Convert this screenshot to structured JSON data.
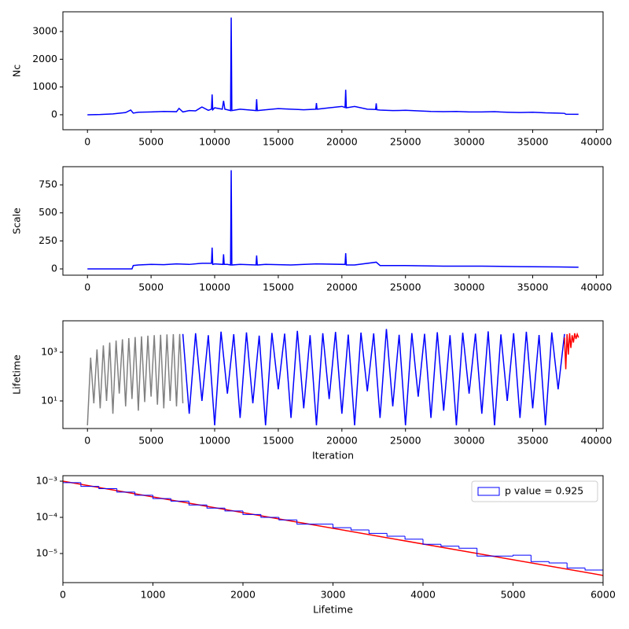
{
  "chart_data": [
    {
      "type": "line",
      "ylabel": "Nc",
      "series": [
        {
          "color": "#0000ff",
          "x": [
            0,
            1000,
            2000,
            3000,
            3400,
            3600,
            4000,
            5000,
            6000,
            7000,
            7200,
            7500,
            8000,
            8500,
            9000,
            9500,
            9750,
            9800,
            9850,
            10000,
            10600,
            10700,
            10800,
            11000,
            11250,
            11300,
            11350,
            12000,
            13000,
            13250,
            13300,
            13350,
            14000,
            15000,
            16000,
            17000,
            17950,
            18000,
            18050,
            19000,
            20000,
            20250,
            20300,
            20350,
            21000,
            22000,
            22650,
            22700,
            22750,
            23000,
            24000,
            25000,
            26000,
            27000,
            28000,
            29000,
            30000,
            31000,
            32000,
            33000,
            34000,
            35000,
            36000,
            37000,
            37500,
            37600,
            38600
          ],
          "values": [
            0,
            10,
            30,
            80,
            170,
            60,
            90,
            100,
            120,
            110,
            230,
            100,
            150,
            140,
            280,
            160,
            200,
            730,
            180,
            250,
            200,
            500,
            200,
            180,
            150,
            3500,
            150,
            200,
            160,
            150,
            560,
            150,
            180,
            220,
            200,
            180,
            200,
            420,
            200,
            250,
            300,
            260,
            900,
            250,
            300,
            200,
            190,
            410,
            180,
            170,
            150,
            160,
            140,
            120,
            110,
            120,
            100,
            100,
            110,
            90,
            80,
            90,
            70,
            60,
            50,
            20,
            15
          ]
        }
      ],
      "xlim": [
        -1930,
        40530
      ],
      "xticks": [
        0,
        5000,
        10000,
        15000,
        20000,
        25000,
        30000,
        35000,
        40000
      ],
      "ylim": [
        -540,
        3710
      ],
      "yticks": [
        0,
        1000,
        2000,
        3000
      ]
    },
    {
      "type": "line",
      "ylabel": "Scale",
      "series": [
        {
          "color": "#0000ff",
          "x": [
            0,
            3500,
            3600,
            4000,
            5000,
            6000,
            7000,
            8000,
            9000,
            9750,
            9800,
            9850,
            10000,
            10650,
            10700,
            10750,
            11000,
            11250,
            11300,
            11350,
            12000,
            13250,
            13300,
            13350,
            14000,
            16000,
            18000,
            20250,
            20300,
            20350,
            21000,
            22700,
            23000,
            25000,
            28000,
            31000,
            34000,
            37000,
            38600
          ],
          "values": [
            0,
            0,
            30,
            35,
            40,
            38,
            45,
            40,
            50,
            50,
            190,
            40,
            45,
            40,
            130,
            40,
            40,
            35,
            880,
            35,
            40,
            35,
            120,
            35,
            40,
            35,
            45,
            40,
            140,
            35,
            35,
            60,
            30,
            30,
            25,
            25,
            20,
            18,
            15
          ]
        }
      ],
      "xlim": [
        -1930,
        40530
      ],
      "xticks": [
        0,
        5000,
        10000,
        15000,
        20000,
        25000,
        30000,
        35000,
        40000
      ],
      "ylim": [
        -56,
        912
      ],
      "yticks": [
        0,
        250,
        500,
        750
      ]
    },
    {
      "type": "line",
      "ylabel": "Lifetime",
      "xlabel": "Iteration",
      "ylog": true,
      "series": [
        {
          "color": "#808080",
          "x": [
            0,
            250,
            500,
            750,
            1000,
            1250,
            1500,
            1750,
            2000,
            2250,
            2500,
            2750,
            3000,
            3250,
            3500,
            3750,
            4000,
            4250,
            4500,
            4750,
            5000,
            5250,
            5500,
            5750,
            6000,
            6250,
            6500,
            6750,
            7000,
            7250,
            7500
          ],
          "values": [
            1,
            600,
            8,
            1300,
            5,
            1900,
            10,
            2500,
            3,
            3000,
            20,
            3400,
            6,
            3800,
            12,
            4200,
            4,
            4500,
            9,
            4800,
            15,
            5000,
            7,
            5200,
            5,
            5400,
            10,
            5500,
            6,
            5600,
            8
          ]
        },
        {
          "color": "#0000ff",
          "x": [
            7500,
            8000,
            8500,
            9000,
            9500,
            10000,
            10500,
            11000,
            11500,
            12000,
            12500,
            13000,
            13500,
            14000,
            14500,
            15000,
            15500,
            16000,
            16500,
            17000,
            17500,
            18000,
            18500,
            19000,
            19500,
            20000,
            20500,
            21000,
            21500,
            22000,
            22500,
            23000,
            23500,
            24000,
            24500,
            25000,
            25500,
            26000,
            26500,
            27000,
            27500,
            28000,
            28500,
            29000,
            29500,
            30000,
            30500,
            31000,
            31500,
            32000,
            32500,
            33000,
            33500,
            34000,
            34500,
            35000,
            35500,
            36000,
            36500,
            37000,
            37500
          ],
          "values": [
            5600,
            3,
            6000,
            10,
            5000,
            1,
            7000,
            20,
            5500,
            2,
            6500,
            8,
            4800,
            1,
            6200,
            30,
            5800,
            2,
            7500,
            5,
            5000,
            1,
            6000,
            12,
            6800,
            3,
            5300,
            1,
            6400,
            25,
            5900,
            2,
            9000,
            6,
            5200,
            1,
            6100,
            15,
            5700,
            2,
            6600,
            4,
            5000,
            1,
            6300,
            20,
            5800,
            3,
            7200,
            1,
            5400,
            10,
            6000,
            2,
            6900,
            5,
            5100,
            1,
            6500,
            30,
            5600
          ]
        },
        {
          "color": "#ff0000",
          "x": [
            37500,
            37600,
            37700,
            37800,
            37900,
            38000,
            38100,
            38200,
            38300,
            38400,
            38500,
            38600
          ],
          "values": [
            4000,
            200,
            5500,
            800,
            6000,
            1500,
            5000,
            2500,
            6000,
            3500,
            5500,
            4000
          ]
        }
      ],
      "xlim": [
        -1930,
        40530
      ],
      "xticks": [
        0,
        5000,
        10000,
        15000,
        20000,
        25000,
        30000,
        35000,
        40000
      ],
      "ylim": [
        0.74,
        19500
      ],
      "yticks": [
        {
          "value": 10,
          "label": "10¹"
        },
        {
          "value": 1000,
          "label": "10³"
        }
      ]
    },
    {
      "type": "histogram",
      "xlabel": "Lifetime",
      "ylog": true,
      "color": "#0000ff",
      "label": "p value = 0.925",
      "legend": "upper right",
      "bins": [
        0,
        200,
        400,
        600,
        800,
        1000,
        1200,
        1400,
        1600,
        1800,
        2000,
        2200,
        2400,
        2600,
        2800,
        3000,
        3200,
        3400,
        3600,
        3800,
        4000,
        4200,
        4400,
        4600,
        4800,
        5000,
        5200,
        5400,
        5600,
        5800,
        6000
      ],
      "values": [
        0.00091,
        0.00072,
        0.00062,
        0.0005,
        0.00041,
        0.00033,
        0.00028,
        0.00022,
        0.00018,
        0.00015,
        0.00012,
        0.0001,
        8.5e-05,
        6.5e-05,
        6.5e-05,
        5.2e-05,
        4.5e-05,
        3.6e-05,
        3e-05,
        2.5e-05,
        1.8e-05,
        1.6e-05,
        1.4e-05,
        8.5e-06,
        8.5e-06,
        9e-06,
        6e-06,
        5.5e-06,
        4e-06,
        3.5e-06
      ],
      "fit_line": {
        "color": "#ff0000",
        "x": [
          0,
          6000
        ],
        "values": [
          0.001,
          2.48e-06
        ]
      },
      "xlim": [
        0,
        6000
      ],
      "xticks": [
        0,
        1000,
        2000,
        3000,
        4000,
        5000,
        6000
      ],
      "ylim": [
        1.57e-06,
        0.00142
      ],
      "yticks": [
        {
          "value": 0.001,
          "label": "10⁻³"
        },
        {
          "value": 0.0001,
          "label": "10⁻⁴"
        },
        {
          "value": 1e-05,
          "label": "10⁻⁵"
        }
      ]
    }
  ]
}
